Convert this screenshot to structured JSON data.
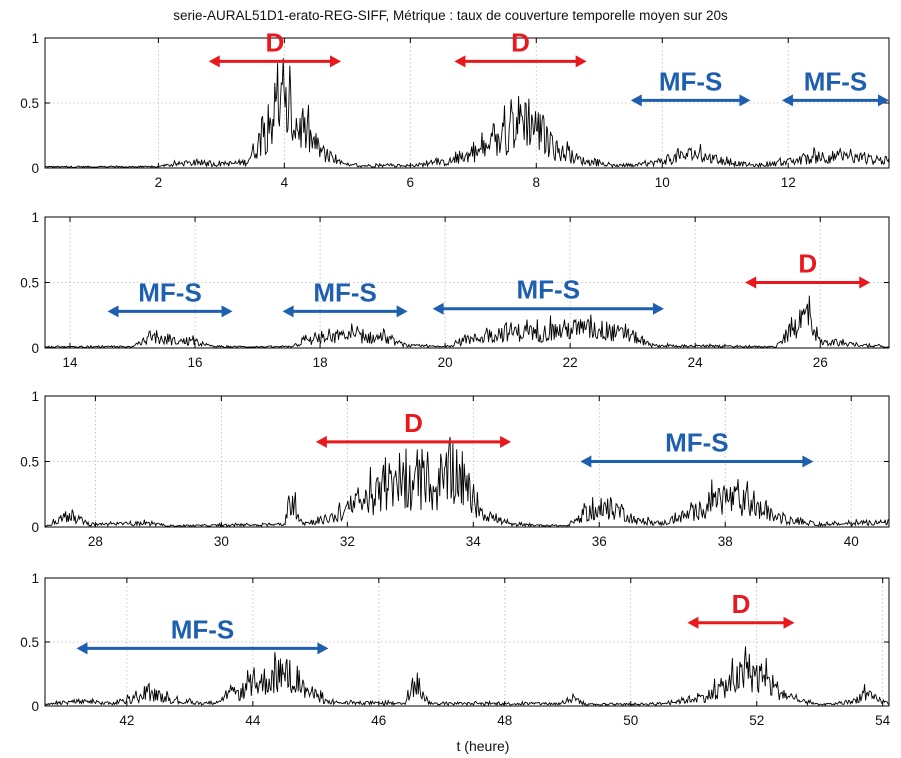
{
  "chart_data": {
    "title": "serie-AURAL51D1-erato-REG-SIFF, Métrique : taux de couverture temporelle moyen sur 20s",
    "xlabel": "t (heure)",
    "ylabel": "",
    "colors": {
      "D": "#e8181c",
      "MF-S": "#1f5fb0",
      "signal": "#000000",
      "grid": "#b8b8b8"
    },
    "panels": [
      {
        "type": "line",
        "xlim": [
          0.2,
          13.6
        ],
        "ylim": [
          0,
          1
        ],
        "xticks": [
          2,
          4,
          6,
          8,
          10,
          12
        ],
        "yticks": [
          0,
          0.5,
          1
        ],
        "ytick_labels": [
          "0",
          "0.5",
          "1"
        ],
        "grid": true,
        "signal_profile": [
          [
            0.2,
            0.01
          ],
          [
            2.0,
            0.01
          ],
          [
            2.4,
            0.04
          ],
          [
            3.0,
            0.03
          ],
          [
            3.4,
            0.05
          ],
          [
            3.7,
            0.3
          ],
          [
            3.9,
            0.55
          ],
          [
            4.1,
            0.42
          ],
          [
            4.4,
            0.25
          ],
          [
            4.7,
            0.08
          ],
          [
            5.0,
            0.02
          ],
          [
            6.0,
            0.02
          ],
          [
            6.6,
            0.05
          ],
          [
            7.0,
            0.12
          ],
          [
            7.4,
            0.2
          ],
          [
            7.8,
            0.45
          ],
          [
            8.0,
            0.35
          ],
          [
            8.3,
            0.15
          ],
          [
            8.8,
            0.05
          ],
          [
            9.2,
            0.02
          ],
          [
            9.6,
            0.02
          ],
          [
            10.0,
            0.06
          ],
          [
            10.5,
            0.12
          ],
          [
            11.0,
            0.05
          ],
          [
            11.5,
            0.02
          ],
          [
            12.0,
            0.05
          ],
          [
            12.6,
            0.1
          ],
          [
            13.6,
            0.06
          ]
        ],
        "annotations": [
          {
            "label": "D",
            "x1": 2.8,
            "x2": 4.9,
            "level": 0.82,
            "color": "D"
          },
          {
            "label": "D",
            "x1": 6.7,
            "x2": 8.8,
            "level": 0.82,
            "color": "D"
          },
          {
            "label": "MF-S",
            "x1": 9.5,
            "x2": 11.4,
            "level": 0.52,
            "color": "MF-S"
          },
          {
            "label": "MF-S",
            "x1": 11.9,
            "x2": 13.6,
            "level": 0.52,
            "color": "MF-S"
          }
        ]
      },
      {
        "type": "line",
        "xlim": [
          13.6,
          27.1
        ],
        "ylim": [
          0,
          1
        ],
        "xticks": [
          14,
          16,
          18,
          20,
          22,
          24,
          26
        ],
        "yticks": [
          0,
          0.5,
          1
        ],
        "ytick_labels": [
          "0",
          "0.5",
          "1"
        ],
        "grid": true,
        "signal_profile": [
          [
            13.6,
            0.01
          ],
          [
            15.0,
            0.01
          ],
          [
            15.3,
            0.08
          ],
          [
            15.6,
            0.06
          ],
          [
            16.0,
            0.05
          ],
          [
            16.3,
            0.01
          ],
          [
            17.5,
            0.01
          ],
          [
            17.8,
            0.06
          ],
          [
            18.5,
            0.1
          ],
          [
            19.0,
            0.08
          ],
          [
            19.4,
            0.02
          ],
          [
            20.0,
            0.01
          ],
          [
            20.5,
            0.08
          ],
          [
            21.0,
            0.14
          ],
          [
            21.5,
            0.12
          ],
          [
            22.0,
            0.16
          ],
          [
            22.5,
            0.15
          ],
          [
            23.0,
            0.1
          ],
          [
            23.3,
            0.02
          ],
          [
            25.3,
            0.01
          ],
          [
            25.6,
            0.18
          ],
          [
            25.8,
            0.3
          ],
          [
            26.0,
            0.05
          ],
          [
            27.1,
            0.01
          ]
        ],
        "annotations": [
          {
            "label": "MF-S",
            "x1": 14.6,
            "x2": 16.6,
            "level": 0.28,
            "color": "MF-S"
          },
          {
            "label": "MF-S",
            "x1": 17.4,
            "x2": 19.4,
            "level": 0.28,
            "color": "MF-S"
          },
          {
            "label": "MF-S",
            "x1": 19.8,
            "x2": 23.5,
            "level": 0.3,
            "color": "MF-S"
          },
          {
            "label": "D",
            "x1": 24.8,
            "x2": 26.8,
            "level": 0.5,
            "color": "D"
          }
        ]
      },
      {
        "type": "line",
        "xlim": [
          27.2,
          40.6
        ],
        "ylim": [
          0,
          1
        ],
        "xticks": [
          28,
          30,
          32,
          34,
          36,
          38,
          40
        ],
        "yticks": [
          0,
          0.5,
          1
        ],
        "ytick_labels": [
          "0",
          "0.5",
          "1"
        ],
        "grid": true,
        "signal_profile": [
          [
            27.2,
            0.01
          ],
          [
            27.6,
            0.1
          ],
          [
            27.9,
            0.02
          ],
          [
            28.8,
            0.03
          ],
          [
            29.2,
            0.01
          ],
          [
            31.0,
            0.02
          ],
          [
            31.1,
            0.25
          ],
          [
            31.3,
            0.03
          ],
          [
            31.8,
            0.08
          ],
          [
            32.2,
            0.2
          ],
          [
            32.6,
            0.3
          ],
          [
            33.0,
            0.35
          ],
          [
            33.4,
            0.3
          ],
          [
            33.7,
            0.5
          ],
          [
            33.9,
            0.3
          ],
          [
            34.2,
            0.1
          ],
          [
            34.6,
            0.02
          ],
          [
            35.5,
            0.01
          ],
          [
            35.8,
            0.12
          ],
          [
            36.3,
            0.15
          ],
          [
            36.6,
            0.05
          ],
          [
            37.0,
            0.03
          ],
          [
            37.5,
            0.12
          ],
          [
            38.0,
            0.25
          ],
          [
            38.4,
            0.18
          ],
          [
            38.9,
            0.06
          ],
          [
            39.5,
            0.02
          ],
          [
            40.6,
            0.04
          ]
        ],
        "annotations": [
          {
            "label": "D",
            "x1": 31.5,
            "x2": 34.6,
            "level": 0.65,
            "color": "D"
          },
          {
            "label": "MF-S",
            "x1": 35.7,
            "x2": 39.4,
            "level": 0.5,
            "color": "MF-S"
          }
        ]
      },
      {
        "type": "line",
        "xlim": [
          40.7,
          54.1
        ],
        "ylim": [
          0,
          1
        ],
        "xticks": [
          42,
          44,
          46,
          48,
          50,
          52,
          54
        ],
        "yticks": [
          0,
          0.5,
          1
        ],
        "ytick_labels": [
          "0",
          "0.5",
          "1"
        ],
        "grid": true,
        "signal_profile": [
          [
            40.7,
            0.01
          ],
          [
            41.2,
            0.04
          ],
          [
            41.8,
            0.02
          ],
          [
            42.4,
            0.1
          ],
          [
            42.8,
            0.04
          ],
          [
            43.3,
            0.02
          ],
          [
            43.8,
            0.12
          ],
          [
            44.2,
            0.22
          ],
          [
            44.5,
            0.28
          ],
          [
            44.8,
            0.15
          ],
          [
            45.2,
            0.03
          ],
          [
            46.4,
            0.02
          ],
          [
            46.6,
            0.2
          ],
          [
            46.8,
            0.02
          ],
          [
            48.9,
            0.02
          ],
          [
            49.1,
            0.07
          ],
          [
            49.3,
            0.01
          ],
          [
            50.5,
            0.02
          ],
          [
            51.2,
            0.08
          ],
          [
            51.6,
            0.2
          ],
          [
            51.9,
            0.3
          ],
          [
            52.2,
            0.18
          ],
          [
            52.6,
            0.05
          ],
          [
            53.0,
            0.01
          ],
          [
            53.5,
            0.03
          ],
          [
            53.7,
            0.1
          ],
          [
            54.1,
            0.02
          ]
        ],
        "annotations": [
          {
            "label": "MF-S",
            "x1": 41.2,
            "x2": 45.2,
            "level": 0.45,
            "color": "MF-S"
          },
          {
            "label": "D",
            "x1": 50.9,
            "x2": 52.6,
            "level": 0.65,
            "color": "D"
          }
        ]
      }
    ]
  }
}
